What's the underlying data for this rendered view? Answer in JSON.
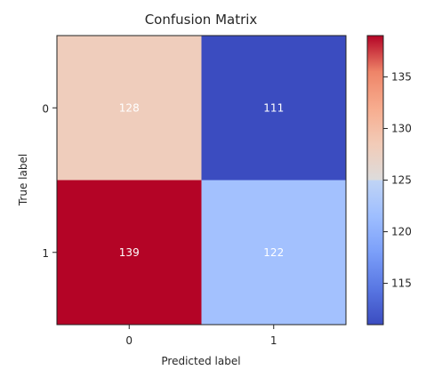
{
  "chart_data": {
    "type": "heatmap",
    "title": "Confusion Matrix",
    "xlabel": "Predicted label",
    "ylabel": "True label",
    "x_categories": [
      "0",
      "1"
    ],
    "y_categories": [
      "0",
      "1"
    ],
    "values": [
      [
        128,
        111
      ],
      [
        139,
        122
      ]
    ],
    "colormap": "coolwarm",
    "colorbar": {
      "min": 111,
      "max": 139,
      "ticks": [
        115,
        120,
        125,
        130,
        135
      ]
    },
    "cell_text_color": "#ffffff",
    "grid": false
  }
}
